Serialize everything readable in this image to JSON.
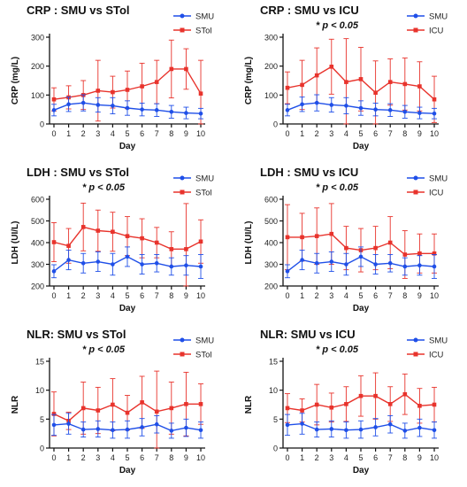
{
  "colors": {
    "smu": "#1f4fe8",
    "other": "#e8332c",
    "axis": "#111111"
  },
  "chart_data": [
    {
      "type": "line",
      "title": "CRP : SMU vs STol",
      "annotation": "",
      "xlabel": "Day",
      "ylabel": "CRP (mg/L)",
      "x": [
        0,
        1,
        2,
        3,
        4,
        5,
        6,
        7,
        8,
        9,
        10
      ],
      "xlim": [
        -0.3,
        10.3
      ],
      "ylim": [
        0,
        300
      ],
      "yticks": [
        0,
        100,
        200,
        300
      ],
      "legend": "top-right",
      "series": [
        {
          "name": "SMU",
          "color": "#1f4fe8",
          "values": [
            48,
            68,
            73,
            66,
            63,
            55,
            50,
            48,
            42,
            38,
            36
          ],
          "err": [
            20,
            25,
            28,
            25,
            28,
            25,
            22,
            22,
            22,
            20,
            18
          ]
        },
        {
          "name": "STol",
          "color": "#e8332c",
          "values": [
            85,
            92,
            100,
            115,
            110,
            118,
            130,
            145,
            190,
            190,
            105
          ],
          "err": [
            40,
            40,
            50,
            105,
            55,
            65,
            80,
            75,
            100,
            70,
            115
          ]
        }
      ]
    },
    {
      "type": "line",
      "title": "CRP : SMU vs ICU",
      "annotation": "* p < 0.05",
      "xlabel": "Day",
      "ylabel": "CRP (mg/L)",
      "x": [
        0,
        1,
        2,
        3,
        4,
        5,
        6,
        7,
        8,
        9,
        10
      ],
      "xlim": [
        -0.3,
        10.3
      ],
      "ylim": [
        0,
        300
      ],
      "yticks": [
        0,
        100,
        200,
        300
      ],
      "legend": "top-right",
      "series": [
        {
          "name": "SMU",
          "color": "#1f4fe8",
          "values": [
            48,
            68,
            73,
            66,
            63,
            55,
            50,
            48,
            42,
            38,
            36
          ],
          "err": [
            20,
            25,
            28,
            25,
            28,
            25,
            22,
            22,
            22,
            20,
            18
          ]
        },
        {
          "name": "ICU",
          "color": "#e8332c",
          "values": [
            125,
            135,
            168,
            198,
            145,
            155,
            108,
            145,
            138,
            130,
            85
          ],
          "err": [
            55,
            85,
            95,
            95,
            150,
            110,
            110,
            80,
            90,
            85,
            80
          ]
        }
      ]
    },
    {
      "type": "line",
      "title": "LDH : SMU vs STol",
      "annotation": "* p < 0.05",
      "xlabel": "Day",
      "ylabel": "LDH (UI/L)",
      "x": [
        0,
        1,
        2,
        3,
        4,
        5,
        6,
        7,
        8,
        9,
        10
      ],
      "xlim": [
        -0.3,
        10.3
      ],
      "ylim": [
        200,
        600
      ],
      "yticks": [
        200,
        300,
        400,
        500,
        600
      ],
      "legend": "top-right",
      "series": [
        {
          "name": "SMU",
          "color": "#1f4fe8",
          "values": [
            268,
            320,
            305,
            312,
            300,
            335,
            300,
            305,
            290,
            295,
            290
          ],
          "err": [
            30,
            45,
            45,
            45,
            50,
            45,
            45,
            40,
            40,
            45,
            55
          ]
        },
        {
          "name": "STol",
          "color": "#e8332c",
          "values": [
            402,
            385,
            472,
            455,
            450,
            430,
            420,
            400,
            370,
            370,
            405
          ],
          "err": [
            90,
            80,
            110,
            95,
            90,
            90,
            90,
            70,
            80,
            210,
            100
          ]
        }
      ]
    },
    {
      "type": "line",
      "title": "LDH : SMU vs ICU",
      "annotation": "* p < 0.05",
      "xlabel": "Day",
      "ylabel": "LDH (UI/L)",
      "x": [
        0,
        1,
        2,
        3,
        4,
        5,
        6,
        7,
        8,
        9,
        10
      ],
      "xlim": [
        -0.3,
        10.3
      ],
      "ylim": [
        200,
        600
      ],
      "yticks": [
        200,
        300,
        400,
        500,
        600
      ],
      "legend": "top-right",
      "series": [
        {
          "name": "SMU",
          "color": "#1f4fe8",
          "values": [
            268,
            320,
            305,
            312,
            300,
            335,
            300,
            305,
            290,
            295,
            290
          ],
          "err": [
            30,
            45,
            45,
            45,
            50,
            45,
            45,
            40,
            40,
            45,
            55
          ]
        },
        {
          "name": "ICU",
          "color": "#e8332c",
          "values": [
            425,
            425,
            430,
            440,
            375,
            365,
            375,
            400,
            345,
            350,
            350
          ],
          "err": [
            150,
            110,
            130,
            140,
            100,
            100,
            100,
            120,
            110,
            90,
            90
          ]
        }
      ]
    },
    {
      "type": "line",
      "title": "NLR: SMU vs STol",
      "annotation": "* p < 0.05",
      "xlabel": "Day",
      "ylabel": "NLR",
      "x": [
        0,
        1,
        2,
        3,
        4,
        5,
        6,
        7,
        8,
        9,
        10
      ],
      "xlim": [
        -0.3,
        10.3
      ],
      "ylim": [
        0,
        15
      ],
      "yticks": [
        0,
        5,
        10,
        15
      ],
      "legend": "top-right",
      "series": [
        {
          "name": "SMU",
          "color": "#1f4fe8",
          "values": [
            4.0,
            4.2,
            3.2,
            3.3,
            3.1,
            3.2,
            3.6,
            4.1,
            3.0,
            3.5,
            3.1
          ],
          "err": [
            1.8,
            1.8,
            1.3,
            1.4,
            1.4,
            1.5,
            1.5,
            1.5,
            1.3,
            1.5,
            1.4
          ]
        },
        {
          "name": "STol",
          "color": "#e8332c",
          "values": [
            5.9,
            4.7,
            6.9,
            6.5,
            7.5,
            6.1,
            7.9,
            6.3,
            6.9,
            7.6,
            7.6
          ],
          "err": [
            3.8,
            1.5,
            4.5,
            4.0,
            4.5,
            3.0,
            4.5,
            7.0,
            4.5,
            5.5,
            3.5
          ]
        }
      ]
    },
    {
      "type": "line",
      "title": "NLR: SMU vs ICU",
      "annotation": "* p < 0.05",
      "xlabel": "Day",
      "ylabel": "NLR",
      "x": [
        0,
        1,
        2,
        3,
        4,
        5,
        6,
        7,
        8,
        9,
        10
      ],
      "xlim": [
        -0.3,
        10.3
      ],
      "ylim": [
        0,
        15
      ],
      "yticks": [
        0,
        5,
        10,
        15
      ],
      "legend": "top-right",
      "series": [
        {
          "name": "SMU",
          "color": "#1f4fe8",
          "values": [
            4.0,
            4.2,
            3.2,
            3.3,
            3.1,
            3.2,
            3.6,
            4.1,
            3.0,
            3.5,
            3.1
          ],
          "err": [
            1.8,
            1.8,
            1.3,
            1.4,
            1.4,
            1.5,
            1.5,
            1.5,
            1.3,
            1.5,
            1.4
          ]
        },
        {
          "name": "ICU",
          "color": "#e8332c",
          "values": [
            6.9,
            6.5,
            7.5,
            7.0,
            7.6,
            9.0,
            9.0,
            7.6,
            9.3,
            7.3,
            7.5
          ],
          "err": [
            2.5,
            2.0,
            3.5,
            2.5,
            3.0,
            3.5,
            4.0,
            3.0,
            3.5,
            3.0,
            3.0
          ]
        }
      ]
    }
  ]
}
